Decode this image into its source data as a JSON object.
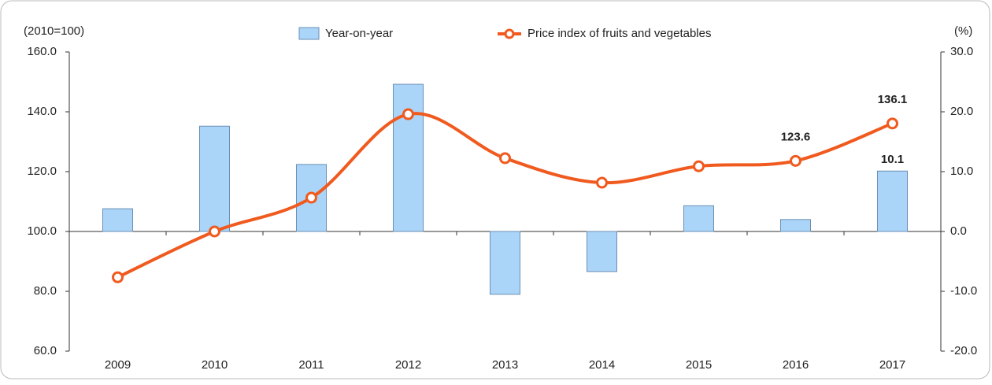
{
  "chart_data": {
    "type": "bar-line",
    "y_unit_label": "(2010=100)",
    "y2_unit_label": "(%)",
    "categories": [
      "2009",
      "2010",
      "2011",
      "2012",
      "2013",
      "2014",
      "2015",
      "2016",
      "2017"
    ],
    "ylim": [
      60,
      160
    ],
    "yticks": [
      {
        "value": 60,
        "label": "60.0"
      },
      {
        "value": 80,
        "label": "80.0"
      },
      {
        "value": 100,
        "label": "100.0"
      },
      {
        "value": 120,
        "label": "120.0"
      },
      {
        "value": 140,
        "label": "140.0"
      },
      {
        "value": 160,
        "label": "160.0"
      }
    ],
    "y2lim": [
      -20,
      30
    ],
    "y2ticks": [
      {
        "value": -20,
        "label": "-20.0"
      },
      {
        "value": -10,
        "label": "-10.0"
      },
      {
        "value": 0,
        "label": "0.0"
      },
      {
        "value": 10,
        "label": "10.0"
      },
      {
        "value": 20,
        "label": "20.0"
      },
      {
        "value": 30,
        "label": "30.0"
      }
    ],
    "series": [
      {
        "name": "Year-on-year",
        "type": "bar",
        "axis": "y2",
        "color": "#aad5f8",
        "values": [
          3.8,
          17.6,
          11.2,
          24.6,
          -10.5,
          -6.7,
          4.3,
          2.0,
          10.1
        ],
        "value_labels": [
          null,
          null,
          null,
          null,
          null,
          null,
          null,
          null,
          "10.1"
        ]
      },
      {
        "name": "Price index of fruits and vegetables",
        "type": "line",
        "axis": "y",
        "color": "#f05a1e",
        "values": [
          84.7,
          100.0,
          111.3,
          139.2,
          124.5,
          116.3,
          121.8,
          123.6,
          136.1
        ],
        "value_labels": [
          null,
          null,
          null,
          null,
          null,
          null,
          null,
          "123.6",
          "136.1"
        ]
      }
    ]
  }
}
